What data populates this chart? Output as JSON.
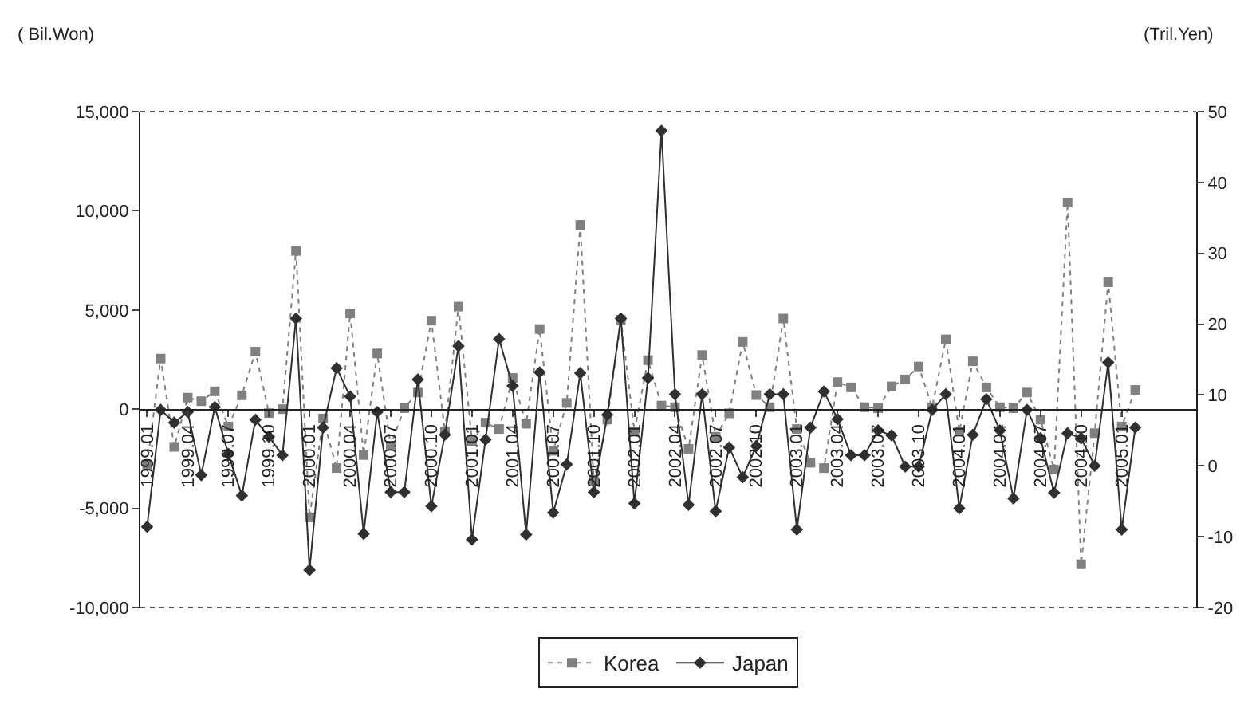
{
  "chart_data": {
    "type": "line",
    "ylabel": "( Bil.Won)",
    "y2label": "(Tril.Yen)",
    "categories": [
      "1999.01",
      null,
      null,
      "1999.04",
      null,
      null,
      "1999.07",
      null,
      null,
      "1999.10",
      null,
      null,
      "2000.01",
      null,
      null,
      "2000.04",
      null,
      null,
      "2000.07",
      null,
      null,
      "2000.10",
      null,
      null,
      "2001.01",
      null,
      null,
      "2001.04",
      null,
      null,
      "2001.07",
      null,
      null,
      "2001.10",
      null,
      null,
      "2002.01",
      null,
      null,
      "2002.04",
      null,
      null,
      "2002.07",
      null,
      null,
      "2002.10",
      null,
      null,
      "2003.01",
      null,
      null,
      "2003.04",
      null,
      null,
      "2003.07",
      null,
      null,
      "2003.10",
      null,
      null,
      "2004.01",
      null,
      null,
      "2004.04",
      null,
      null,
      "2004.07",
      null,
      null,
      "2004.10",
      null,
      null,
      "2005.01",
      null
    ],
    "series": [
      {
        "name": "Korea",
        "color": "#808080",
        "marker": "square",
        "line_style": "dotted",
        "values": [
          -2800,
          2550,
          -1900,
          580,
          400,
          900,
          -870,
          700,
          2900,
          -200,
          0,
          7980,
          -5460,
          -470,
          -2970,
          4830,
          -2310,
          2810,
          -1840,
          50,
          840,
          4460,
          -1130,
          5170,
          -1600,
          -680,
          -1000,
          1575,
          -735,
          4040,
          -2100,
          315,
          9290,
          -3620,
          -525,
          4510,
          -1130,
          2470,
          180,
          100,
          -2000,
          2730,
          -1390,
          -210,
          3390,
          710,
          100,
          4570,
          -1000,
          -2700,
          -2970,
          1365,
          1100,
          100,
          50,
          1150,
          1500,
          2150,
          100,
          3520,
          -1130,
          2415,
          1100,
          100,
          50,
          840,
          -525,
          -3045,
          10420,
          -7820,
          -1210,
          6400,
          -870,
          970
        ]
      },
      {
        "name": "Japan",
        "color": "#303030",
        "marker": "diamond",
        "line_style": "solid",
        "axis": "y2",
        "values": [
          -8.6,
          7.9,
          6.1,
          7.6,
          -1.3,
          8.3,
          1.7,
          -4.2,
          6.5,
          4.1,
          1.5,
          20.8,
          -14.7,
          5.4,
          13.8,
          9.8,
          -9.6,
          7.6,
          -3.7,
          -3.7,
          12.2,
          -5.7,
          4.4,
          16.9,
          -10.4,
          3.7,
          17.9,
          11.3,
          -9.7,
          13.2,
          -6.6,
          0.2,
          13.1,
          -3.7,
          7.2,
          20.8,
          -5.3,
          12.4,
          47.3,
          10.1,
          -5.5,
          10.1,
          -6.4,
          2.6,
          -1.6,
          2.8,
          10.1,
          10.1,
          -9.0,
          5.4,
          10.5,
          6.6,
          1.5,
          1.5,
          5.0,
          4.3,
          -0.1,
          -0.1,
          7.9,
          10.1,
          -6.0,
          4.4,
          9.4,
          5.0,
          -4.6,
          7.9,
          3.9,
          -3.8,
          4.6,
          3.9,
          0,
          14.6,
          -9.0,
          5.4
        ]
      }
    ],
    "ylim": [
      -10000,
      15000
    ],
    "yticks": [
      {
        "value": -10000,
        "label": "-10,000"
      },
      {
        "value": -5000,
        "label": "-5,000"
      },
      0,
      {
        "value": 5000,
        "label": "5,000"
      },
      {
        "value": 10000,
        "label": "10,000"
      },
      {
        "value": 15000,
        "label": "15,000"
      }
    ],
    "y2lim": [
      -20,
      50
    ],
    "y2ticks": [
      -20,
      -10,
      0,
      10,
      20,
      30,
      40,
      50
    ],
    "grid": false,
    "legend": "bottom"
  }
}
